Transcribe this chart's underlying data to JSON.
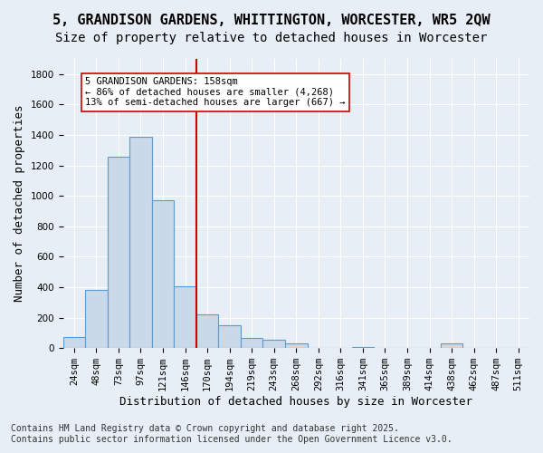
{
  "title": "5, GRANDISON GARDENS, WHITTINGTON, WORCESTER, WR5 2QW",
  "subtitle": "Size of property relative to detached houses in Worcester",
  "xlabel": "Distribution of detached houses by size in Worcester",
  "ylabel": "Number of detached properties",
  "categories": [
    "24sqm",
    "48sqm",
    "73sqm",
    "97sqm",
    "121sqm",
    "146sqm",
    "170sqm",
    "194sqm",
    "219sqm",
    "243sqm",
    "268sqm",
    "292sqm",
    "316sqm",
    "341sqm",
    "365sqm",
    "389sqm",
    "414sqm",
    "438sqm",
    "462sqm",
    "487sqm",
    "511sqm"
  ],
  "values": [
    75,
    380,
    1260,
    1390,
    970,
    405,
    220,
    150,
    65,
    55,
    30,
    0,
    0,
    10,
    0,
    0,
    0,
    30,
    0,
    0,
    0
  ],
  "bar_color": "#c9d9e8",
  "bar_edge_color": "#5b9bd5",
  "ref_line_x": 5.5,
  "ref_line_label": "5 GRANDISON GARDENS: 158sqm",
  "ref_line_smaller": "← 86% of detached houses are smaller (4,268)",
  "ref_line_larger": "13% of semi-detached houses are larger (667) →",
  "annotation_box_color": "#ffffff",
  "annotation_box_edge_color": "#cc0000",
  "ref_line_color": "#cc0000",
  "ylim": [
    0,
    1900
  ],
  "yticks": [
    0,
    200,
    400,
    600,
    800,
    1000,
    1200,
    1400,
    1600,
    1800
  ],
  "background_color": "#e8eef5",
  "footer1": "Contains HM Land Registry data © Crown copyright and database right 2025.",
  "footer2": "Contains public sector information licensed under the Open Government Licence v3.0.",
  "title_fontsize": 11,
  "subtitle_fontsize": 10,
  "xlabel_fontsize": 9,
  "ylabel_fontsize": 9,
  "tick_fontsize": 7.5,
  "footer_fontsize": 7
}
